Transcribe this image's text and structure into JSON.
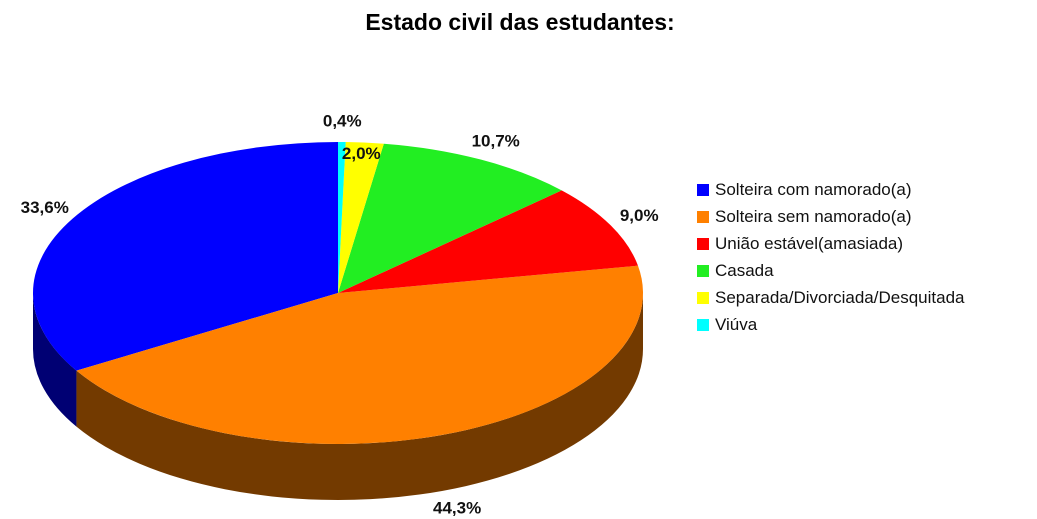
{
  "chart_data": {
    "type": "pie",
    "title": "Estado civil das estudantes:",
    "categories": [
      "Solteira com namorado(a)",
      "Solteira sem namorado(a)",
      "União estável(amasiada)",
      "Casada",
      "Separada/Divorciada/Desquitada",
      "Viúva"
    ],
    "values": [
      33.6,
      44.3,
      9.0,
      10.7,
      2.0,
      0.4
    ],
    "value_labels": [
      "33,6%",
      "44,3%",
      "9,0%",
      "10,7%",
      "2,0%",
      "0,4%"
    ],
    "colors": [
      "#0000ff",
      "#ff8000",
      "#ff0000",
      "#22ee22",
      "#ffff00",
      "#00ffff"
    ],
    "legend": "right"
  }
}
